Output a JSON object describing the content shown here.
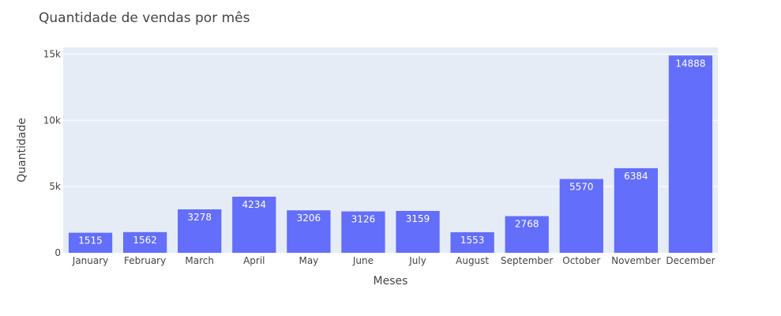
{
  "chart_data": {
    "type": "bar",
    "title": "Quantidade de vendas por mês",
    "xlabel": "Meses",
    "ylabel": "Quantidade",
    "categories": [
      "January",
      "February",
      "March",
      "April",
      "May",
      "June",
      "July",
      "August",
      "September",
      "October",
      "November",
      "December"
    ],
    "values": [
      1515,
      1562,
      3278,
      4234,
      3206,
      3126,
      3159,
      1553,
      2768,
      5570,
      6384,
      14888
    ],
    "ylim": [
      0,
      15500
    ],
    "yticks": [
      0,
      5000,
      10000,
      15000
    ],
    "ytick_labels": [
      "0",
      "5k",
      "10k",
      "15k"
    ],
    "grid": true,
    "legend": "none",
    "colors": {
      "bar": "#636efa",
      "plot_bg": "#e5ecf6",
      "grid": "#ffffff",
      "text": "#444444",
      "label": "#ffffff"
    }
  }
}
